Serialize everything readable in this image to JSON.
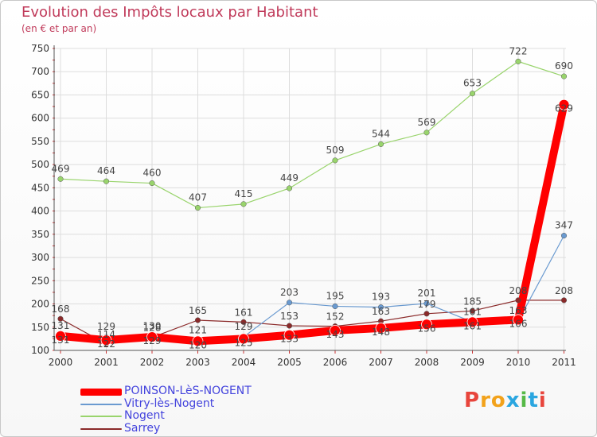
{
  "header": {
    "title": "Evolution des Impôts locaux par Habitant",
    "subtitle": "(en € et par an)"
  },
  "brand": {
    "text": "Proxiti",
    "colors": [
      "#e8453c",
      "#f2a21b",
      "#f2a21b",
      "#2aa6e0",
      "#56b947",
      "#2aa6e0",
      "#e8453c"
    ]
  },
  "chart_data": {
    "type": "line",
    "title": "Evolution des Impôts locaux par Habitant",
    "subtitle": "(en € et par an)",
    "xlabel": "",
    "ylabel": "",
    "categories": [
      "2000",
      "2001",
      "2002",
      "2003",
      "2004",
      "2005",
      "2006",
      "2007",
      "2008",
      "2009",
      "2010",
      "2011"
    ],
    "ylim": [
      100,
      750
    ],
    "yticks": [
      100,
      150,
      200,
      250,
      300,
      350,
      400,
      450,
      500,
      550,
      600,
      650,
      700,
      750
    ],
    "grid": true,
    "legend_position": "bottom-left",
    "series": [
      {
        "name": "POINSON-LèS-NOGENT",
        "color": "#ff0000",
        "line_width": 10,
        "values": [
          131,
          122,
          129,
          120,
          125,
          133,
          143,
          148,
          156,
          161,
          166,
          629
        ],
        "labels": [
          "131",
          "122",
          "129",
          "120",
          "125",
          "133",
          "143",
          "148",
          "156",
          "161",
          "166",
          "629"
        ]
      },
      {
        "name": "Vitry-lès-Nogent",
        "color": "#6a9ad0",
        "line_width": 1.2,
        "values": [
          131,
          129,
          130,
          121,
          129,
          203,
          195,
          193,
          201,
          161,
          163,
          347
        ],
        "labels": [
          "131",
          "129",
          "130",
          "121",
          "129",
          "203",
          "195",
          "193",
          "201",
          "161",
          "163",
          "347"
        ]
      },
      {
        "name": "Nogent",
        "color": "#99d46c",
        "line_width": 1.2,
        "values": [
          469,
          464,
          460,
          407,
          415,
          449,
          509,
          544,
          569,
          653,
          722,
          690
        ],
        "labels": [
          "469",
          "464",
          "460",
          "407",
          "415",
          "449",
          "509",
          "544",
          "569",
          "653",
          "722",
          "690"
        ]
      },
      {
        "name": "Sarrey",
        "color": "#8b2a2a",
        "line_width": 1.2,
        "values": [
          168,
          114,
          128,
          165,
          161,
          153,
          152,
          163,
          179,
          185,
          208,
          208
        ],
        "labels": [
          "168",
          "114",
          "128",
          "165",
          "161",
          "153",
          "152",
          "163",
          "179",
          "185",
          "208",
          "208"
        ]
      }
    ]
  }
}
